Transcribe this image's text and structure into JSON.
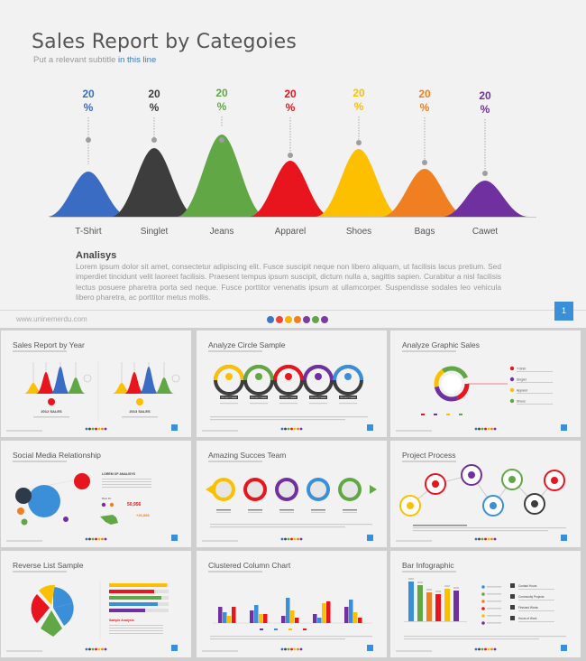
{
  "main": {
    "title": "Sales Report by Categoies",
    "subtitle_prefix": "Put a relevant subtitle ",
    "subtitle_highlight": "in this line",
    "analisys_heading": "Analisys",
    "analisys_text": "Lorem ipsum dolor sit amet, consectetur adipiscing elit. Fusce suscipit neque non libero aliquam, ut facilisis lacus pretium. Sed imperdiet tincidunt velit laoreet facilisis. Praesent tempus ipsum suscipit, dictum nulla a, sagittis sapien. Curabitur a nisl facilisis lectus posuere pharetra porta sed neque. Fusce porttitor venenatis ipsum at ullamcorper. Suspendisse sodales leo vehicula libero pharetra, ac porttitor metus mollis.",
    "footer_url": "www.uninemerdu.com",
    "page_number": "1",
    "footer_dot_colors": [
      "#3a78c2",
      "#e8473b",
      "#f5b400",
      "#f07f22",
      "#7d3aa0",
      "#62a745",
      "#7d3aa0"
    ]
  },
  "chart_data": {
    "type": "area",
    "categories": [
      "T-Shirt",
      "Singlet",
      "Jeans",
      "Apparel",
      "Shoes",
      "Bags",
      "Cawet"
    ],
    "values": [
      20,
      20,
      20,
      20,
      20,
      20,
      20
    ],
    "value_labels": [
      "20",
      "20",
      "20",
      "20",
      "20",
      "20",
      "20"
    ],
    "unit": "%",
    "colors": [
      "#3b6cc4",
      "#3d3d3d",
      "#62a745",
      "#e8141e",
      "#fcc000",
      "#f07f22",
      "#7030a0"
    ]
  },
  "thumbnails": [
    {
      "title": "Sales Report by Year",
      "labels": [
        "2012 SALES",
        "2013 SALES"
      ]
    },
    {
      "title": "Analyze Circle Sample",
      "labels": [
        "PRODUCT NAME",
        "PRODUCT NAME",
        "PRODUCT NAME",
        "PRODUCT NAME",
        "PRODUCT NAME"
      ]
    },
    {
      "title": "Analyze Graphic Sales",
      "labels": [
        "T-Shirt",
        "Singlet",
        "Apparel",
        "Shoes"
      ]
    },
    {
      "title": "Social Media Relationship",
      "labels": [
        "LOREM OF ANALISYS",
        "Best Fit",
        "50,956",
        "+26,898"
      ]
    },
    {
      "title": "Amazing Succes Team",
      "labels": []
    },
    {
      "title": "Project Process",
      "labels": []
    },
    {
      "title": "Reverse List Sample",
      "labels": [
        "Sample Analysis"
      ]
    },
    {
      "title": "Clustered Column Chart",
      "labels": []
    },
    {
      "title": "Bar Infographic",
      "labels": [
        "Contact Hours",
        "Community Projects",
        "Finished Works",
        "Hours of Work"
      ]
    }
  ]
}
